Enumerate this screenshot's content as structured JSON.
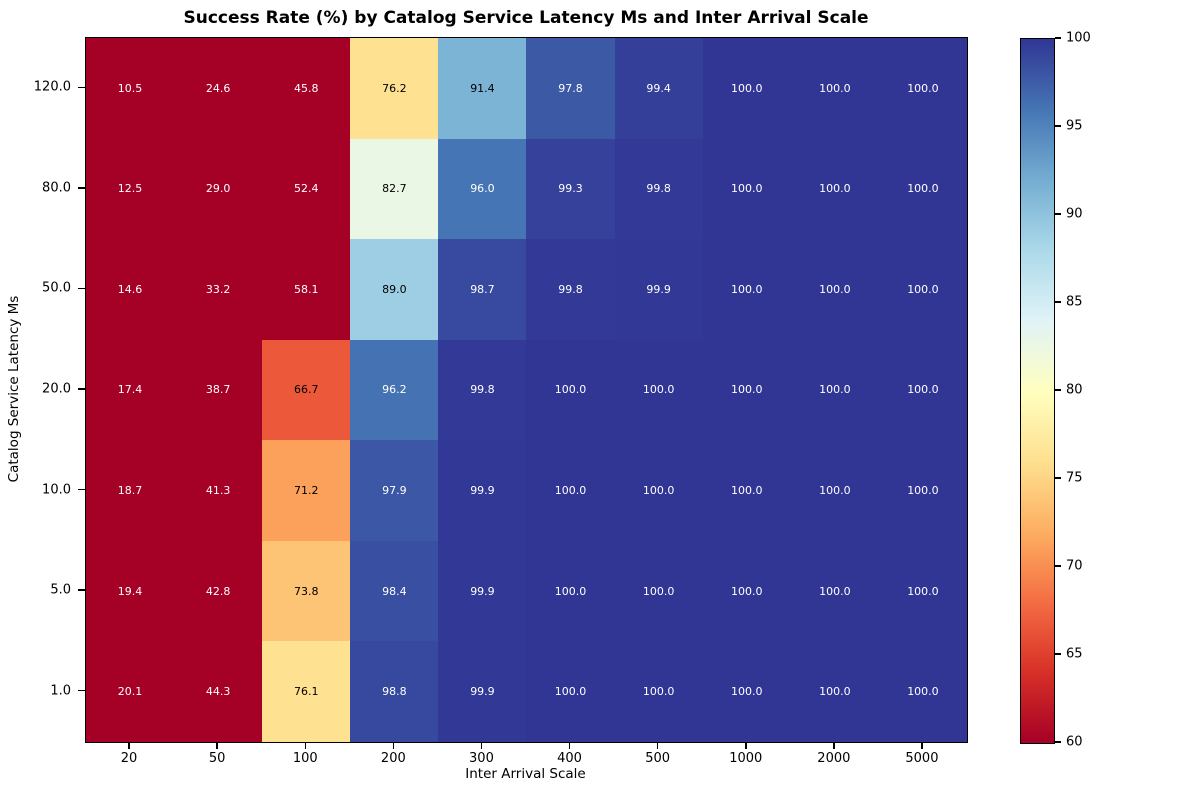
{
  "figure": {
    "background": "#ffffff",
    "spine_color": "#000000"
  },
  "chart_data": {
    "type": "heatmap",
    "title": "Success Rate (%) by Catalog Service Latency Ms and Inter Arrival Scale",
    "xlabel": "Inter Arrival Scale",
    "ylabel": "Catalog Service Latency Ms",
    "x_categories": [
      "20",
      "50",
      "100",
      "200",
      "300",
      "400",
      "500",
      "1000",
      "2000",
      "5000"
    ],
    "y_categories": [
      "120.0",
      "80.0",
      "50.0",
      "20.0",
      "10.0",
      "5.0",
      "1.0"
    ],
    "values": [
      [
        10.5,
        24.6,
        45.8,
        76.2,
        91.4,
        97.8,
        99.4,
        100.0,
        100.0,
        100.0
      ],
      [
        12.5,
        29.0,
        52.4,
        82.7,
        96.0,
        99.3,
        99.8,
        100.0,
        100.0,
        100.0
      ],
      [
        14.6,
        33.2,
        58.1,
        89.0,
        98.7,
        99.8,
        99.9,
        100.0,
        100.0,
        100.0
      ],
      [
        17.4,
        38.7,
        66.7,
        96.2,
        99.8,
        100.0,
        100.0,
        100.0,
        100.0,
        100.0
      ],
      [
        18.7,
        41.3,
        71.2,
        97.9,
        99.9,
        100.0,
        100.0,
        100.0,
        100.0,
        100.0
      ],
      [
        19.4,
        42.8,
        73.8,
        98.4,
        99.9,
        100.0,
        100.0,
        100.0,
        100.0,
        100.0
      ],
      [
        20.1,
        44.3,
        76.1,
        98.8,
        99.9,
        100.0,
        100.0,
        100.0,
        100.0,
        100.0
      ]
    ],
    "value_decimals": 1,
    "vmin": 60,
    "vmax": 100,
    "colorbar_ticks": [
      100,
      95,
      90,
      85,
      80,
      75,
      70,
      65,
      60
    ],
    "colormap": {
      "name": "RdYlBu",
      "anchors": [
        [
          0.0,
          "#a50026"
        ],
        [
          0.1,
          "#d73027"
        ],
        [
          0.2,
          "#f46d43"
        ],
        [
          0.3,
          "#fdae61"
        ],
        [
          0.4,
          "#fee090"
        ],
        [
          0.5,
          "#ffffbf"
        ],
        [
          0.6,
          "#e0f3f8"
        ],
        [
          0.7,
          "#abd9e9"
        ],
        [
          0.8,
          "#74add1"
        ],
        [
          0.9,
          "#4575b4"
        ],
        [
          1.0,
          "#313695"
        ]
      ]
    },
    "annotation_text_colors": {
      "dark": "#000000",
      "light": "#ffffff"
    },
    "legend_position": "right-colorbar",
    "grid": false
  }
}
